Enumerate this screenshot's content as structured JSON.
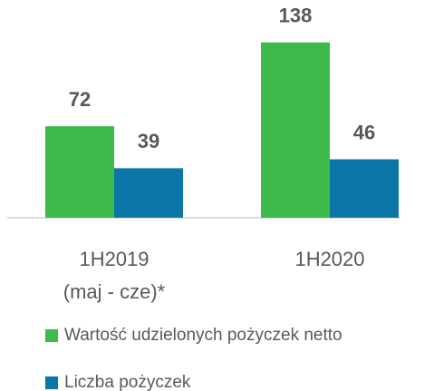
{
  "chart_data": {
    "type": "bar",
    "categories": [
      "1H2019\n(maj - cze)*",
      "1H2020"
    ],
    "series": [
      {
        "name": "Wartość udzielonych pożyczek netto",
        "color": "#3dbb4a",
        "values": [
          72,
          138
        ]
      },
      {
        "name": "Liczba pożyczek",
        "color": "#0a77a8",
        "values": [
          39,
          46
        ]
      }
    ]
  }
}
